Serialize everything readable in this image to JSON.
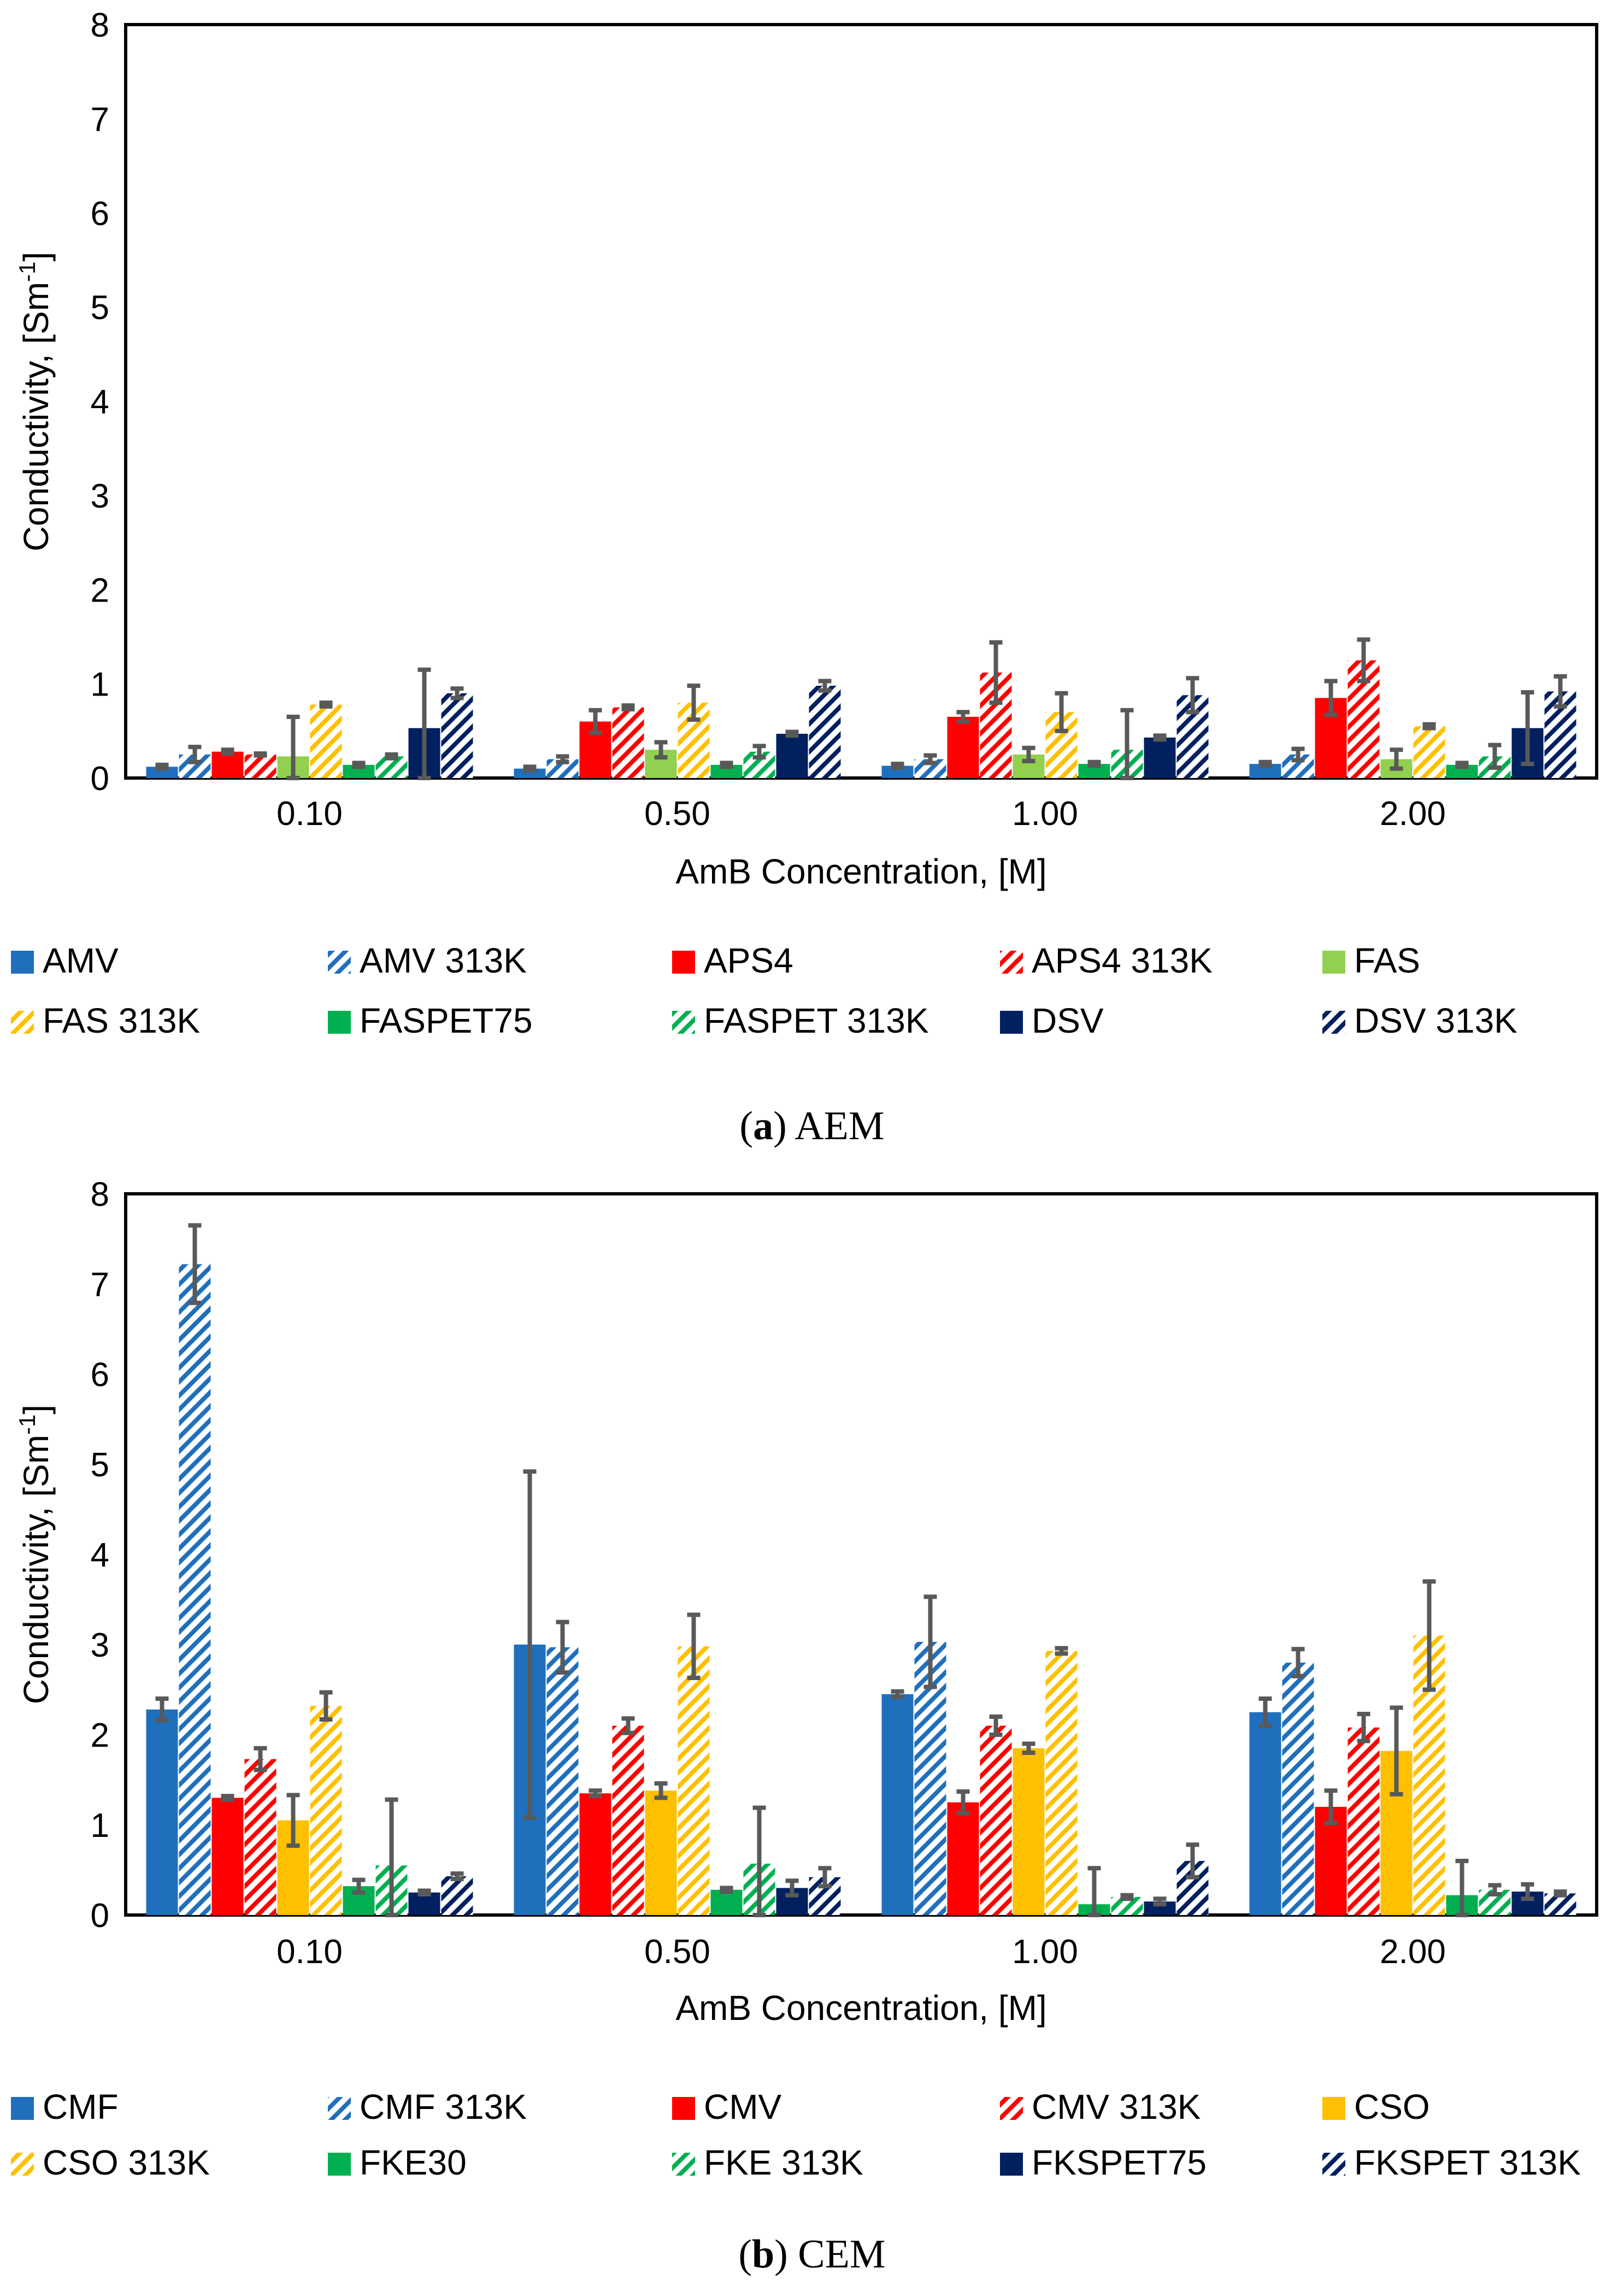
{
  "chart_data": [
    {
      "type": "bar",
      "panel": "a",
      "caption": {
        "letter": "a",
        "text": "AEM"
      },
      "xlabel": "AmB Concentration, [M]",
      "ylabel": "Conductivity, [Sm",
      "ylabel_sup": "-1",
      "ylabel_end": "]",
      "ylim": [
        0,
        8
      ],
      "yticks": [
        "0",
        "1",
        "2",
        "3",
        "4",
        "5",
        "6",
        "7",
        "8"
      ],
      "grid": false,
      "legend_position": "bottom",
      "categories": [
        "0.10",
        "0.50",
        "1.00",
        "2.00"
      ],
      "series": [
        {
          "name": "AMV",
          "color": "#1f6fbd",
          "pattern": "solid",
          "values": [
            0.12,
            0.1,
            0.13,
            0.15
          ],
          "errors": [
            0.02,
            0.02,
            0.02,
            0.02
          ]
        },
        {
          "name": "AMV 313K",
          "color": "#1f6fbd",
          "pattern": "hatch",
          "values": [
            0.25,
            0.2,
            0.2,
            0.25
          ],
          "errors": [
            0.08,
            0.03,
            0.04,
            0.06
          ]
        },
        {
          "name": "APS4",
          "color": "#ff0000",
          "pattern": "solid",
          "values": [
            0.28,
            0.6,
            0.65,
            0.85
          ],
          "errors": [
            0.02,
            0.12,
            0.05,
            0.18
          ]
        },
        {
          "name": "APS4 313K",
          "color": "#ff0000",
          "pattern": "hatch",
          "values": [
            0.25,
            0.75,
            1.12,
            1.25
          ],
          "errors": [
            0.01,
            0.02,
            0.32,
            0.22
          ]
        },
        {
          "name": "FAS",
          "color": "#92d050",
          "pattern": "solid",
          "values": [
            0.23,
            0.3,
            0.25,
            0.2
          ],
          "errors": [
            0.42,
            0.08,
            0.07,
            0.1
          ]
        },
        {
          "name": "FAS 313K",
          "color": "#ffc000",
          "pattern": "hatch",
          "values": [
            0.78,
            0.8,
            0.7,
            0.55
          ],
          "errors": [
            0.02,
            0.18,
            0.2,
            0.02
          ]
        },
        {
          "name": "FASPET75",
          "color": "#00b050",
          "pattern": "solid",
          "values": [
            0.14,
            0.14,
            0.15,
            0.14
          ],
          "errors": [
            0.02,
            0.02,
            0.02,
            0.02
          ]
        },
        {
          "name": "FASPET 313K",
          "color": "#00b050",
          "pattern": "hatch",
          "values": [
            0.23,
            0.28,
            0.3,
            0.23
          ],
          "errors": [
            0.02,
            0.06,
            0.42,
            0.12
          ]
        },
        {
          "name": "DSV",
          "color": "#002060",
          "pattern": "solid",
          "values": [
            0.53,
            0.47,
            0.43,
            0.53
          ],
          "errors": [
            0.62,
            0.02,
            0.02,
            0.38
          ]
        },
        {
          "name": "DSV 313K",
          "color": "#002060",
          "pattern": "hatch",
          "values": [
            0.9,
            0.98,
            0.88,
            0.92
          ],
          "errors": [
            0.05,
            0.05,
            0.18,
            0.16
          ]
        }
      ]
    },
    {
      "type": "bar",
      "panel": "b",
      "caption": {
        "letter": "b",
        "text": "CEM"
      },
      "xlabel": "AmB Concentration, [M]",
      "ylabel": "Conductivity, [Sm",
      "ylabel_sup": "-1",
      "ylabel_end": "]",
      "ylim": [
        0,
        8
      ],
      "yticks": [
        "0",
        "1",
        "2",
        "3",
        "4",
        "5",
        "6",
        "7",
        "8"
      ],
      "grid": false,
      "legend_position": "bottom",
      "categories": [
        "0.10",
        "0.50",
        "1.00",
        "2.00"
      ],
      "series": [
        {
          "name": "CMF",
          "color": "#1f6fbd",
          "pattern": "solid",
          "values": [
            2.28,
            3.0,
            2.45,
            2.25
          ],
          "errors": [
            0.12,
            1.92,
            0.03,
            0.15
          ]
        },
        {
          "name": "CMF 313K",
          "color": "#1f6fbd",
          "pattern": "hatch",
          "values": [
            7.22,
            2.97,
            3.03,
            2.8
          ],
          "errors": [
            0.43,
            0.28,
            0.5,
            0.15
          ]
        },
        {
          "name": "CMV",
          "color": "#ff0000",
          "pattern": "solid",
          "values": [
            1.3,
            1.35,
            1.25,
            1.2
          ],
          "errors": [
            0.02,
            0.03,
            0.12,
            0.18
          ]
        },
        {
          "name": "CMV 313K",
          "color": "#ff0000",
          "pattern": "hatch",
          "values": [
            1.73,
            2.1,
            2.1,
            2.08
          ],
          "errors": [
            0.12,
            0.08,
            0.1,
            0.15
          ]
        },
        {
          "name": "CSO",
          "color": "#ffc000",
          "pattern": "solid",
          "values": [
            1.05,
            1.38,
            1.85,
            1.82
          ],
          "errors": [
            0.28,
            0.08,
            0.05,
            0.48
          ]
        },
        {
          "name": "CSO 313K",
          "color": "#ffc000",
          "pattern": "hatch",
          "values": [
            2.32,
            2.98,
            2.93,
            3.1
          ],
          "errors": [
            0.15,
            0.35,
            0.03,
            0.6
          ]
        },
        {
          "name": "FKE30",
          "color": "#00b050",
          "pattern": "solid",
          "values": [
            0.32,
            0.28,
            0.12,
            0.22
          ],
          "errors": [
            0.07,
            0.02,
            0.4,
            0.38
          ]
        },
        {
          "name": "FKE 313K",
          "color": "#00b050",
          "pattern": "hatch",
          "values": [
            0.55,
            0.57,
            0.2,
            0.28
          ],
          "errors": [
            0.73,
            0.62,
            0.02,
            0.05
          ]
        },
        {
          "name": "FKSPET75",
          "color": "#002060",
          "pattern": "solid",
          "values": [
            0.25,
            0.3,
            0.15,
            0.26
          ],
          "errors": [
            0.02,
            0.08,
            0.03,
            0.08
          ]
        },
        {
          "name": "FKSPET 313K",
          "color": "#002060",
          "pattern": "hatch",
          "values": [
            0.43,
            0.42,
            0.6,
            0.24
          ],
          "errors": [
            0.03,
            0.1,
            0.18,
            0.02
          ]
        }
      ]
    }
  ]
}
